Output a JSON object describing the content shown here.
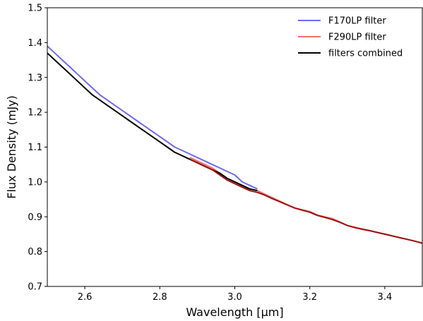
{
  "chart_data": {
    "type": "line",
    "title": "",
    "xlabel": "Wavelength [μm]",
    "ylabel": "Flux Density (mJy)",
    "xlim": [
      2.5,
      3.5
    ],
    "ylim": [
      0.7,
      1.5
    ],
    "xticks": [
      "2.6",
      "2.8",
      "3.0",
      "3.2",
      "3.4"
    ],
    "xtick_values": [
      2.6,
      2.8,
      3.0,
      3.2,
      3.4
    ],
    "yticks": [
      "0.7",
      "0.8",
      "0.9",
      "1.0",
      "1.1",
      "1.2",
      "1.3",
      "1.4",
      "1.5"
    ],
    "ytick_values": [
      0.7,
      0.8,
      0.9,
      1.0,
      1.1,
      1.2,
      1.3,
      1.4,
      1.5
    ],
    "grid": false,
    "legend_position": "top-right",
    "series": [
      {
        "name": "F170LP filter",
        "color": "#6b6bf0",
        "x": [
          2.5,
          2.52,
          2.54,
          2.56,
          2.58,
          2.6,
          2.62,
          2.64,
          2.66,
          2.68,
          2.7,
          2.72,
          2.74,
          2.76,
          2.78,
          2.8,
          2.82,
          2.84,
          2.86,
          2.88,
          2.9,
          2.92,
          2.94,
          2.96,
          2.98,
          3.0,
          3.02,
          3.04,
          3.06
        ],
        "y": [
          1.39,
          1.37,
          1.35,
          1.33,
          1.31,
          1.29,
          1.27,
          1.25,
          1.235,
          1.22,
          1.205,
          1.19,
          1.175,
          1.16,
          1.145,
          1.13,
          1.115,
          1.1,
          1.09,
          1.08,
          1.07,
          1.06,
          1.05,
          1.04,
          1.03,
          1.02,
          1.0,
          0.99,
          0.98
        ]
      },
      {
        "name": "F290LP filter",
        "color": "#f07070",
        "x": [
          2.88,
          2.9,
          2.92,
          2.94,
          2.96,
          2.98,
          3.0,
          3.02,
          3.04,
          3.06,
          3.08,
          3.1,
          3.12,
          3.14,
          3.16,
          3.18,
          3.2,
          3.22,
          3.24,
          3.26,
          3.28,
          3.3,
          3.32,
          3.34,
          3.36,
          3.38,
          3.4,
          3.42,
          3.44,
          3.46,
          3.48,
          3.5
        ],
        "y": [
          1.07,
          1.06,
          1.05,
          1.04,
          1.025,
          1.01,
          1.0,
          0.99,
          0.98,
          0.975,
          0.965,
          0.955,
          0.945,
          0.935,
          0.925,
          0.92,
          0.915,
          0.905,
          0.9,
          0.895,
          0.885,
          0.875,
          0.87,
          0.865,
          0.86,
          0.855,
          0.85,
          0.845,
          0.84,
          0.835,
          0.83,
          0.825
        ]
      },
      {
        "name": "filters combined",
        "color": "#000000",
        "x": [
          2.5,
          2.52,
          2.54,
          2.56,
          2.58,
          2.6,
          2.62,
          2.64,
          2.66,
          2.68,
          2.7,
          2.72,
          2.74,
          2.76,
          2.78,
          2.8,
          2.82,
          2.84,
          2.86,
          2.88,
          2.9,
          2.92,
          2.94,
          2.96,
          2.98,
          3.0,
          3.02,
          3.04,
          3.06
        ],
        "y": [
          1.37,
          1.35,
          1.33,
          1.31,
          1.29,
          1.27,
          1.25,
          1.235,
          1.22,
          1.205,
          1.19,
          1.175,
          1.16,
          1.145,
          1.13,
          1.115,
          1.1,
          1.085,
          1.075,
          1.065,
          1.055,
          1.045,
          1.035,
          1.025,
          1.01,
          1.0,
          0.99,
          0.98,
          0.975
        ]
      },
      {
        "name": "",
        "color": "#9b1010",
        "x": [
          2.88,
          2.9,
          2.92,
          2.94,
          2.96,
          2.98,
          3.0,
          3.02,
          3.04,
          3.06,
          3.08,
          3.1,
          3.12,
          3.14,
          3.16,
          3.18,
          3.2,
          3.22,
          3.24,
          3.26,
          3.28,
          3.3,
          3.32,
          3.34,
          3.36,
          3.38,
          3.4,
          3.42,
          3.44,
          3.46,
          3.48,
          3.5
        ],
        "y": [
          1.065,
          1.055,
          1.045,
          1.035,
          1.02,
          1.005,
          0.995,
          0.985,
          0.975,
          0.97,
          0.962,
          0.952,
          0.943,
          0.934,
          0.925,
          0.919,
          0.913,
          0.904,
          0.898,
          0.892,
          0.884,
          0.875,
          0.869,
          0.864,
          0.86,
          0.855,
          0.85,
          0.845,
          0.84,
          0.835,
          0.83,
          0.824
        ]
      }
    ]
  }
}
